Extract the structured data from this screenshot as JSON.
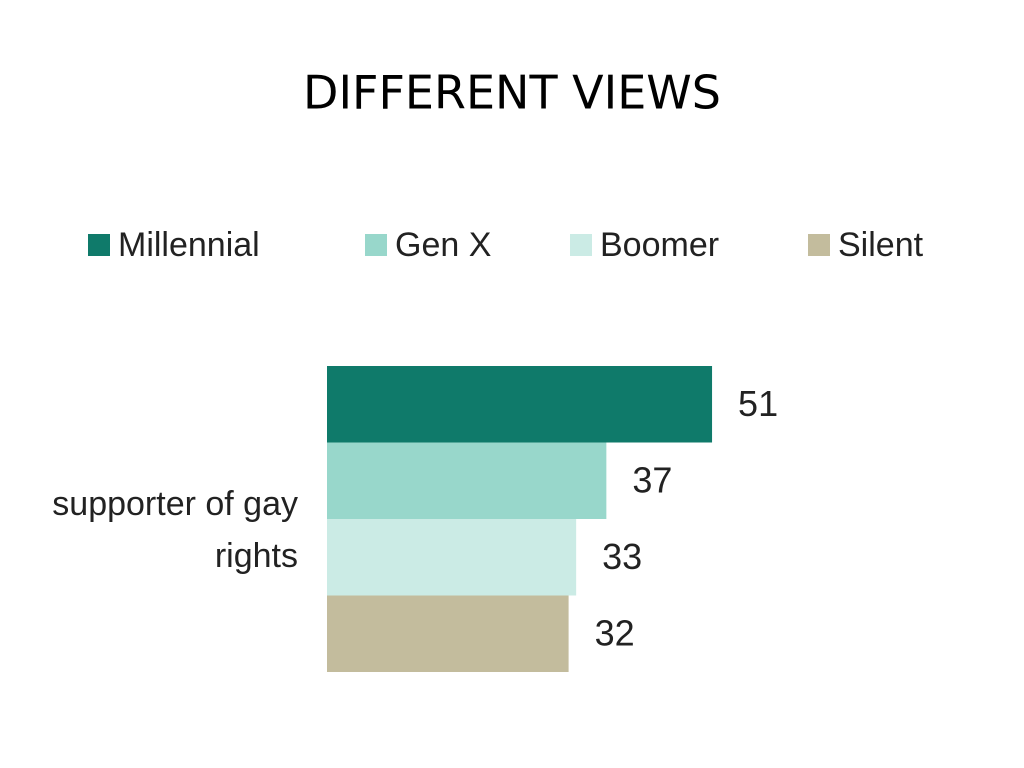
{
  "chart_data": {
    "type": "bar",
    "orientation": "horizontal",
    "title": "DIFFERENT VIEWS",
    "categories": [
      "supporter of gay rights"
    ],
    "series": [
      {
        "name": "Millennial",
        "color": "#0f7a6a",
        "values": [
          51
        ]
      },
      {
        "name": "Gen X",
        "color": "#98d7cb",
        "values": [
          37
        ]
      },
      {
        "name": "Boomer",
        "color": "#cbebe5",
        "values": [
          33
        ]
      },
      {
        "name": "Silent",
        "color": "#c3bc9d",
        "values": [
          32
        ]
      }
    ],
    "legend": "top"
  }
}
